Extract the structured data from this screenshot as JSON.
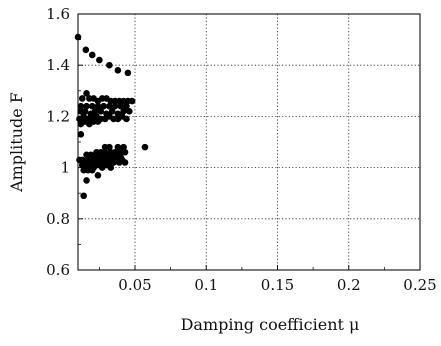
{
  "chart_data": {
    "type": "scatter",
    "title": "",
    "xlabel": "Damping coefficient μ",
    "ylabel": "Amplitude F",
    "xlim": [
      0.01,
      0.25
    ],
    "ylim": [
      0.6,
      1.6
    ],
    "grid": true,
    "x_ticks": [
      "0.05",
      "0.1",
      "0.15",
      "0.2",
      "0.25"
    ],
    "x_tick_values": [
      0.05,
      0.1,
      0.15,
      0.2,
      0.25
    ],
    "y_ticks": [
      "0.6",
      "0.8",
      "1",
      "1.2",
      "1.4",
      "1.6"
    ],
    "y_tick_values": [
      0.6,
      0.8,
      1.0,
      1.2,
      1.4,
      1.6
    ],
    "marker_color": "#000000",
    "series": [
      {
        "points": [
          [
            0.01,
            1.51
          ],
          [
            0.0155,
            1.46
          ],
          [
            0.02,
            1.44
          ],
          [
            0.025,
            1.42
          ],
          [
            0.032,
            1.4
          ],
          [
            0.038,
            1.38
          ],
          [
            0.045,
            1.37
          ],
          [
            0.013,
            1.27
          ],
          [
            0.016,
            1.29
          ],
          [
            0.018,
            1.27
          ],
          [
            0.021,
            1.27
          ],
          [
            0.024,
            1.26
          ],
          [
            0.027,
            1.27
          ],
          [
            0.03,
            1.27
          ],
          [
            0.033,
            1.26
          ],
          [
            0.036,
            1.26
          ],
          [
            0.039,
            1.26
          ],
          [
            0.042,
            1.26
          ],
          [
            0.045,
            1.26
          ],
          [
            0.048,
            1.26
          ],
          [
            0.012,
            1.24
          ],
          [
            0.016,
            1.24
          ],
          [
            0.02,
            1.24
          ],
          [
            0.024,
            1.24
          ],
          [
            0.028,
            1.24
          ],
          [
            0.032,
            1.24
          ],
          [
            0.036,
            1.24
          ],
          [
            0.04,
            1.24
          ],
          [
            0.044,
            1.24
          ],
          [
            0.012,
            1.22
          ],
          [
            0.015,
            1.22
          ],
          [
            0.019,
            1.21
          ],
          [
            0.022,
            1.22
          ],
          [
            0.026,
            1.22
          ],
          [
            0.03,
            1.21
          ],
          [
            0.034,
            1.22
          ],
          [
            0.038,
            1.21
          ],
          [
            0.042,
            1.22
          ],
          [
            0.046,
            1.22
          ],
          [
            0.011,
            1.19
          ],
          [
            0.014,
            1.2
          ],
          [
            0.017,
            1.19
          ],
          [
            0.02,
            1.19
          ],
          [
            0.023,
            1.2
          ],
          [
            0.026,
            1.19
          ],
          [
            0.029,
            1.19
          ],
          [
            0.032,
            1.2
          ],
          [
            0.035,
            1.19
          ],
          [
            0.038,
            1.19
          ],
          [
            0.041,
            1.2
          ],
          [
            0.044,
            1.19
          ],
          [
            0.012,
            1.17
          ],
          [
            0.015,
            1.18
          ],
          [
            0.018,
            1.17
          ],
          [
            0.021,
            1.18
          ],
          [
            0.024,
            1.18
          ],
          [
            0.012,
            1.13
          ],
          [
            0.029,
            1.08
          ],
          [
            0.032,
            1.08
          ],
          [
            0.038,
            1.08
          ],
          [
            0.042,
            1.08
          ],
          [
            0.057,
            1.08
          ],
          [
            0.023,
            1.06
          ],
          [
            0.026,
            1.06
          ],
          [
            0.029,
            1.06
          ],
          [
            0.033,
            1.06
          ],
          [
            0.036,
            1.06
          ],
          [
            0.04,
            1.06
          ],
          [
            0.043,
            1.06
          ],
          [
            0.016,
            1.05
          ],
          [
            0.019,
            1.05
          ],
          [
            0.022,
            1.05
          ],
          [
            0.025,
            1.04
          ],
          [
            0.028,
            1.05
          ],
          [
            0.031,
            1.04
          ],
          [
            0.034,
            1.04
          ],
          [
            0.037,
            1.05
          ],
          [
            0.04,
            1.04
          ],
          [
            0.011,
            1.03
          ],
          [
            0.013,
            1.03
          ],
          [
            0.015,
            1.02
          ],
          [
            0.017,
            1.03
          ],
          [
            0.019,
            1.02
          ],
          [
            0.021,
            1.03
          ],
          [
            0.023,
            1.02
          ],
          [
            0.025,
            1.03
          ],
          [
            0.027,
            1.02
          ],
          [
            0.029,
            1.03
          ],
          [
            0.031,
            1.02
          ],
          [
            0.033,
            1.03
          ],
          [
            0.035,
            1.02
          ],
          [
            0.037,
            1.03
          ],
          [
            0.039,
            1.02
          ],
          [
            0.041,
            1.03
          ],
          [
            0.043,
            1.02
          ],
          [
            0.013,
            1.01
          ],
          [
            0.016,
            1.0
          ],
          [
            0.018,
            1.01
          ],
          [
            0.021,
            1.0
          ],
          [
            0.024,
            1.01
          ],
          [
            0.027,
            1.0
          ],
          [
            0.03,
            1.01
          ],
          [
            0.033,
            1.0
          ],
          [
            0.014,
            0.99
          ],
          [
            0.017,
            0.99
          ],
          [
            0.02,
            0.99
          ],
          [
            0.024,
            0.97
          ],
          [
            0.016,
            0.95
          ],
          [
            0.014,
            0.89
          ]
        ]
      }
    ]
  }
}
